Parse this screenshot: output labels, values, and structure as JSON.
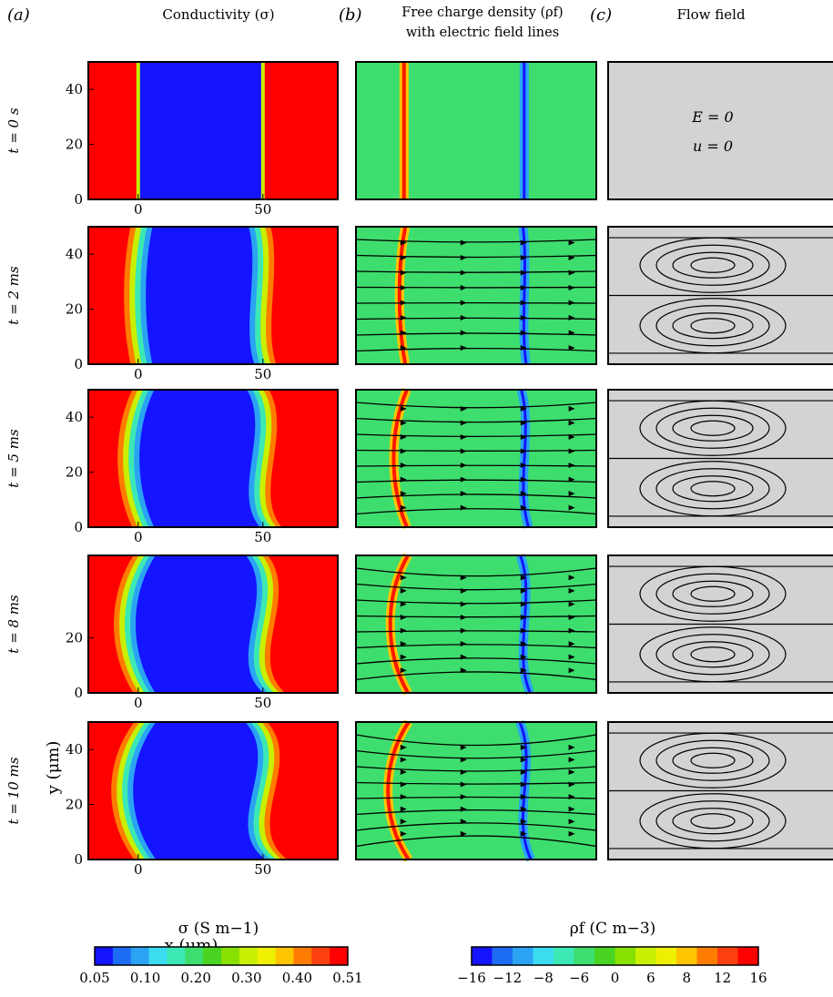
{
  "panel_labels": [
    "(a)",
    "(b)",
    "(c)"
  ],
  "column_titles": {
    "a": "Conductivity (σ)",
    "b_line1": "Free charge density (ρf)",
    "b_line2": "with electric field lines",
    "c": "Flow field"
  },
  "row_labels": [
    "t = 0 s",
    "t = 2 ms",
    "t = 5 ms",
    "t = 8 ms",
    "t = 10 ms"
  ],
  "flow_annotation": {
    "e": "E = 0",
    "u": "u = 0"
  },
  "xlabel": "x (μm)",
  "ylabel": "y (μm)",
  "colorbars": {
    "sigma": {
      "title": "σ (S m−1)",
      "tick_labels": [
        "0.05",
        "0.10",
        "0.20",
        "0.30",
        "0.40",
        "0.51"
      ],
      "colors": [
        "#1414ff",
        "#1c6cf4",
        "#2aa4f2",
        "#3cdcf0",
        "#3ce8b4",
        "#3ede6e",
        "#48d420",
        "#88e000",
        "#c8f000",
        "#eef000",
        "#ffc400",
        "#ff7c00",
        "#ff4010",
        "#ff0000"
      ]
    },
    "rho": {
      "title": "ρf (C m−3)",
      "tick_labels": [
        "−16",
        "−12",
        "−8",
        "−6",
        "0",
        "6",
        "8",
        "12",
        "16"
      ],
      "colors": [
        "#1414ff",
        "#1c6cf4",
        "#2aa4f2",
        "#3cdcf0",
        "#3ce8b4",
        "#3ede6e",
        "#48d420",
        "#88e000",
        "#c8f000",
        "#eef000",
        "#ffc400",
        "#ff7c00",
        "#ff4010",
        "#ff0000"
      ]
    }
  },
  "chart_data": {
    "type": "heatmap",
    "x_ticks": [
      0,
      50
    ],
    "y_ticks": [
      0,
      20,
      40
    ],
    "xlim": [
      -20,
      80
    ],
    "ylim": [
      0,
      50
    ],
    "sigma_range": [
      0.05,
      0.51
    ],
    "rho_range": [
      -16,
      16
    ],
    "times": [
      "0 s",
      "2 ms",
      "5 ms",
      "8 ms",
      "10 ms"
    ],
    "colors": {
      "low": "#1414ff",
      "high": "#ff0000",
      "neutral": "#3ede6e",
      "flow_bg": "#d3d3d3"
    }
  }
}
